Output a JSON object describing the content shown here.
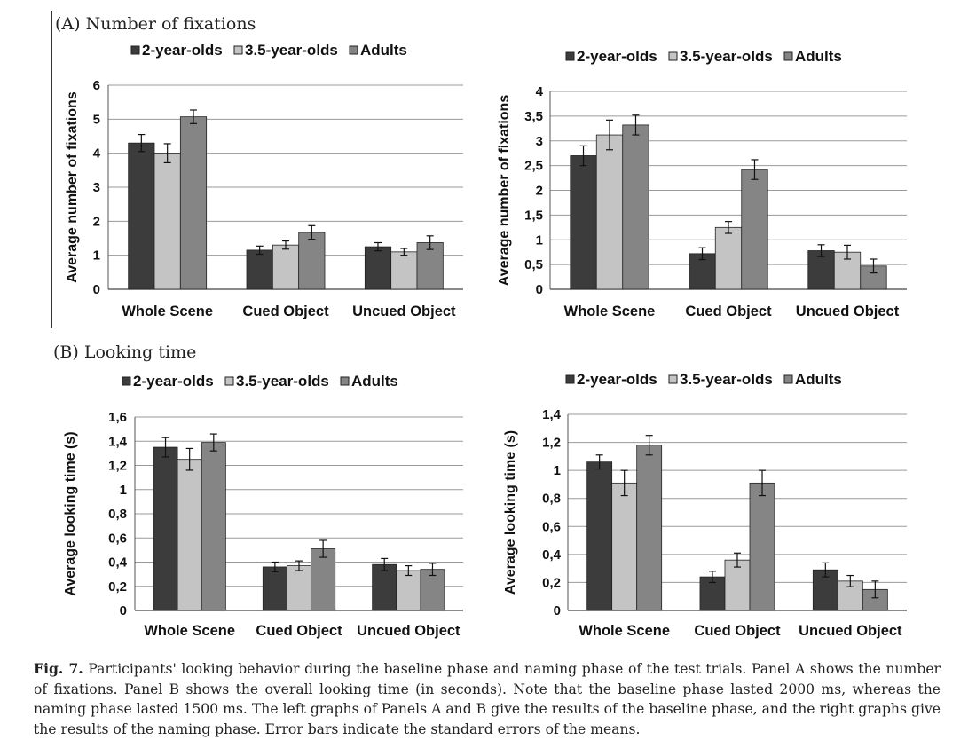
{
  "panels": {
    "a_title": "(A) Number of fixations",
    "b_title": "(B) Looking time"
  },
  "caption": {
    "label": "Fig. 7.",
    "text": "Participants' looking behavior during the baseline phase and naming phase of the test trials. Panel A shows the number of fixations. Panel B shows the overall looking time (in seconds). Note that the baseline phase lasted 2000 ms, whereas the naming phase lasted 1500 ms. The left graphs of Panels A and B give the results of the baseline phase, and the right graphs give the results of the naming phase. Error bars indicate the standard errors of the means."
  },
  "colors": {
    "two_year_olds": "#3c3c3c",
    "three_half_year_olds": "#c4c4c4",
    "adults": "#858585",
    "grid": "#9a9a9a"
  },
  "chart_data": [
    {
      "type": "bar",
      "categories": [
        "Whole Scene",
        "Cued Object",
        "Uncued Object"
      ],
      "ylabel": "Average number of fixations",
      "ylim": [
        0,
        6
      ],
      "yticks": [
        "0",
        "1",
        "2",
        "3",
        "4",
        "5",
        "6"
      ],
      "grid": true,
      "legend": "top",
      "series": [
        {
          "name": "2-year-olds",
          "values": [
            4.3,
            1.15,
            1.25
          ],
          "errors": [
            0.25,
            0.12,
            0.12
          ]
        },
        {
          "name": "3.5-year-olds",
          "values": [
            4.0,
            1.3,
            1.1
          ],
          "errors": [
            0.28,
            0.12,
            0.1
          ]
        },
        {
          "name": "Adults",
          "values": [
            5.07,
            1.67,
            1.37
          ],
          "errors": [
            0.2,
            0.2,
            0.2
          ]
        }
      ]
    },
    {
      "type": "bar",
      "categories": [
        "Whole Scene",
        "Cued Object",
        "Uncued Object"
      ],
      "ylabel": "Average number of fixations",
      "ylim": [
        0,
        4
      ],
      "yticks": [
        "0",
        "0,5",
        "1",
        "1,5",
        "2",
        "2,5",
        "3",
        "3,5",
        "4"
      ],
      "grid": true,
      "legend": "top",
      "series": [
        {
          "name": "2-year-olds",
          "values": [
            2.7,
            0.72,
            0.78
          ],
          "errors": [
            0.2,
            0.12,
            0.12
          ]
        },
        {
          "name": "3.5-year-olds",
          "values": [
            3.12,
            1.25,
            0.75
          ],
          "errors": [
            0.3,
            0.12,
            0.14
          ]
        },
        {
          "name": "Adults",
          "values": [
            3.32,
            2.42,
            0.47
          ],
          "errors": [
            0.2,
            0.2,
            0.14
          ]
        }
      ]
    },
    {
      "type": "bar",
      "categories": [
        "Whole Scene",
        "Cued Object",
        "Uncued Object"
      ],
      "ylabel": "Average looking time (s)",
      "ylim": [
        0,
        1.6
      ],
      "yticks": [
        "0",
        "0,2",
        "0,4",
        "0,6",
        "0,8",
        "1",
        "1,2",
        "1,4",
        "1,6"
      ],
      "grid": true,
      "legend": "top",
      "series": [
        {
          "name": "2-year-olds",
          "values": [
            1.35,
            0.36,
            0.38
          ],
          "errors": [
            0.08,
            0.04,
            0.05
          ]
        },
        {
          "name": "3.5-year-olds",
          "values": [
            1.25,
            0.37,
            0.33
          ],
          "errors": [
            0.09,
            0.04,
            0.04
          ]
        },
        {
          "name": "Adults",
          "values": [
            1.39,
            0.51,
            0.34
          ],
          "errors": [
            0.07,
            0.07,
            0.05
          ]
        }
      ]
    },
    {
      "type": "bar",
      "categories": [
        "Whole Scene",
        "Cued Object",
        "Uncued Object"
      ],
      "ylabel": "Average looking time (s)",
      "ylim": [
        0,
        1.4
      ],
      "yticks": [
        "0",
        "0,2",
        "0,4",
        "0,6",
        "0,8",
        "1",
        "1,2",
        "1,4"
      ],
      "grid": true,
      "legend": "top",
      "series": [
        {
          "name": "2-year-olds",
          "values": [
            1.06,
            0.24,
            0.29
          ],
          "errors": [
            0.05,
            0.04,
            0.05
          ]
        },
        {
          "name": "3.5-year-olds",
          "values": [
            0.91,
            0.36,
            0.21
          ],
          "errors": [
            0.09,
            0.05,
            0.04
          ]
        },
        {
          "name": "Adults",
          "values": [
            1.18,
            0.91,
            0.15
          ],
          "errors": [
            0.07,
            0.09,
            0.06
          ]
        }
      ]
    }
  ]
}
